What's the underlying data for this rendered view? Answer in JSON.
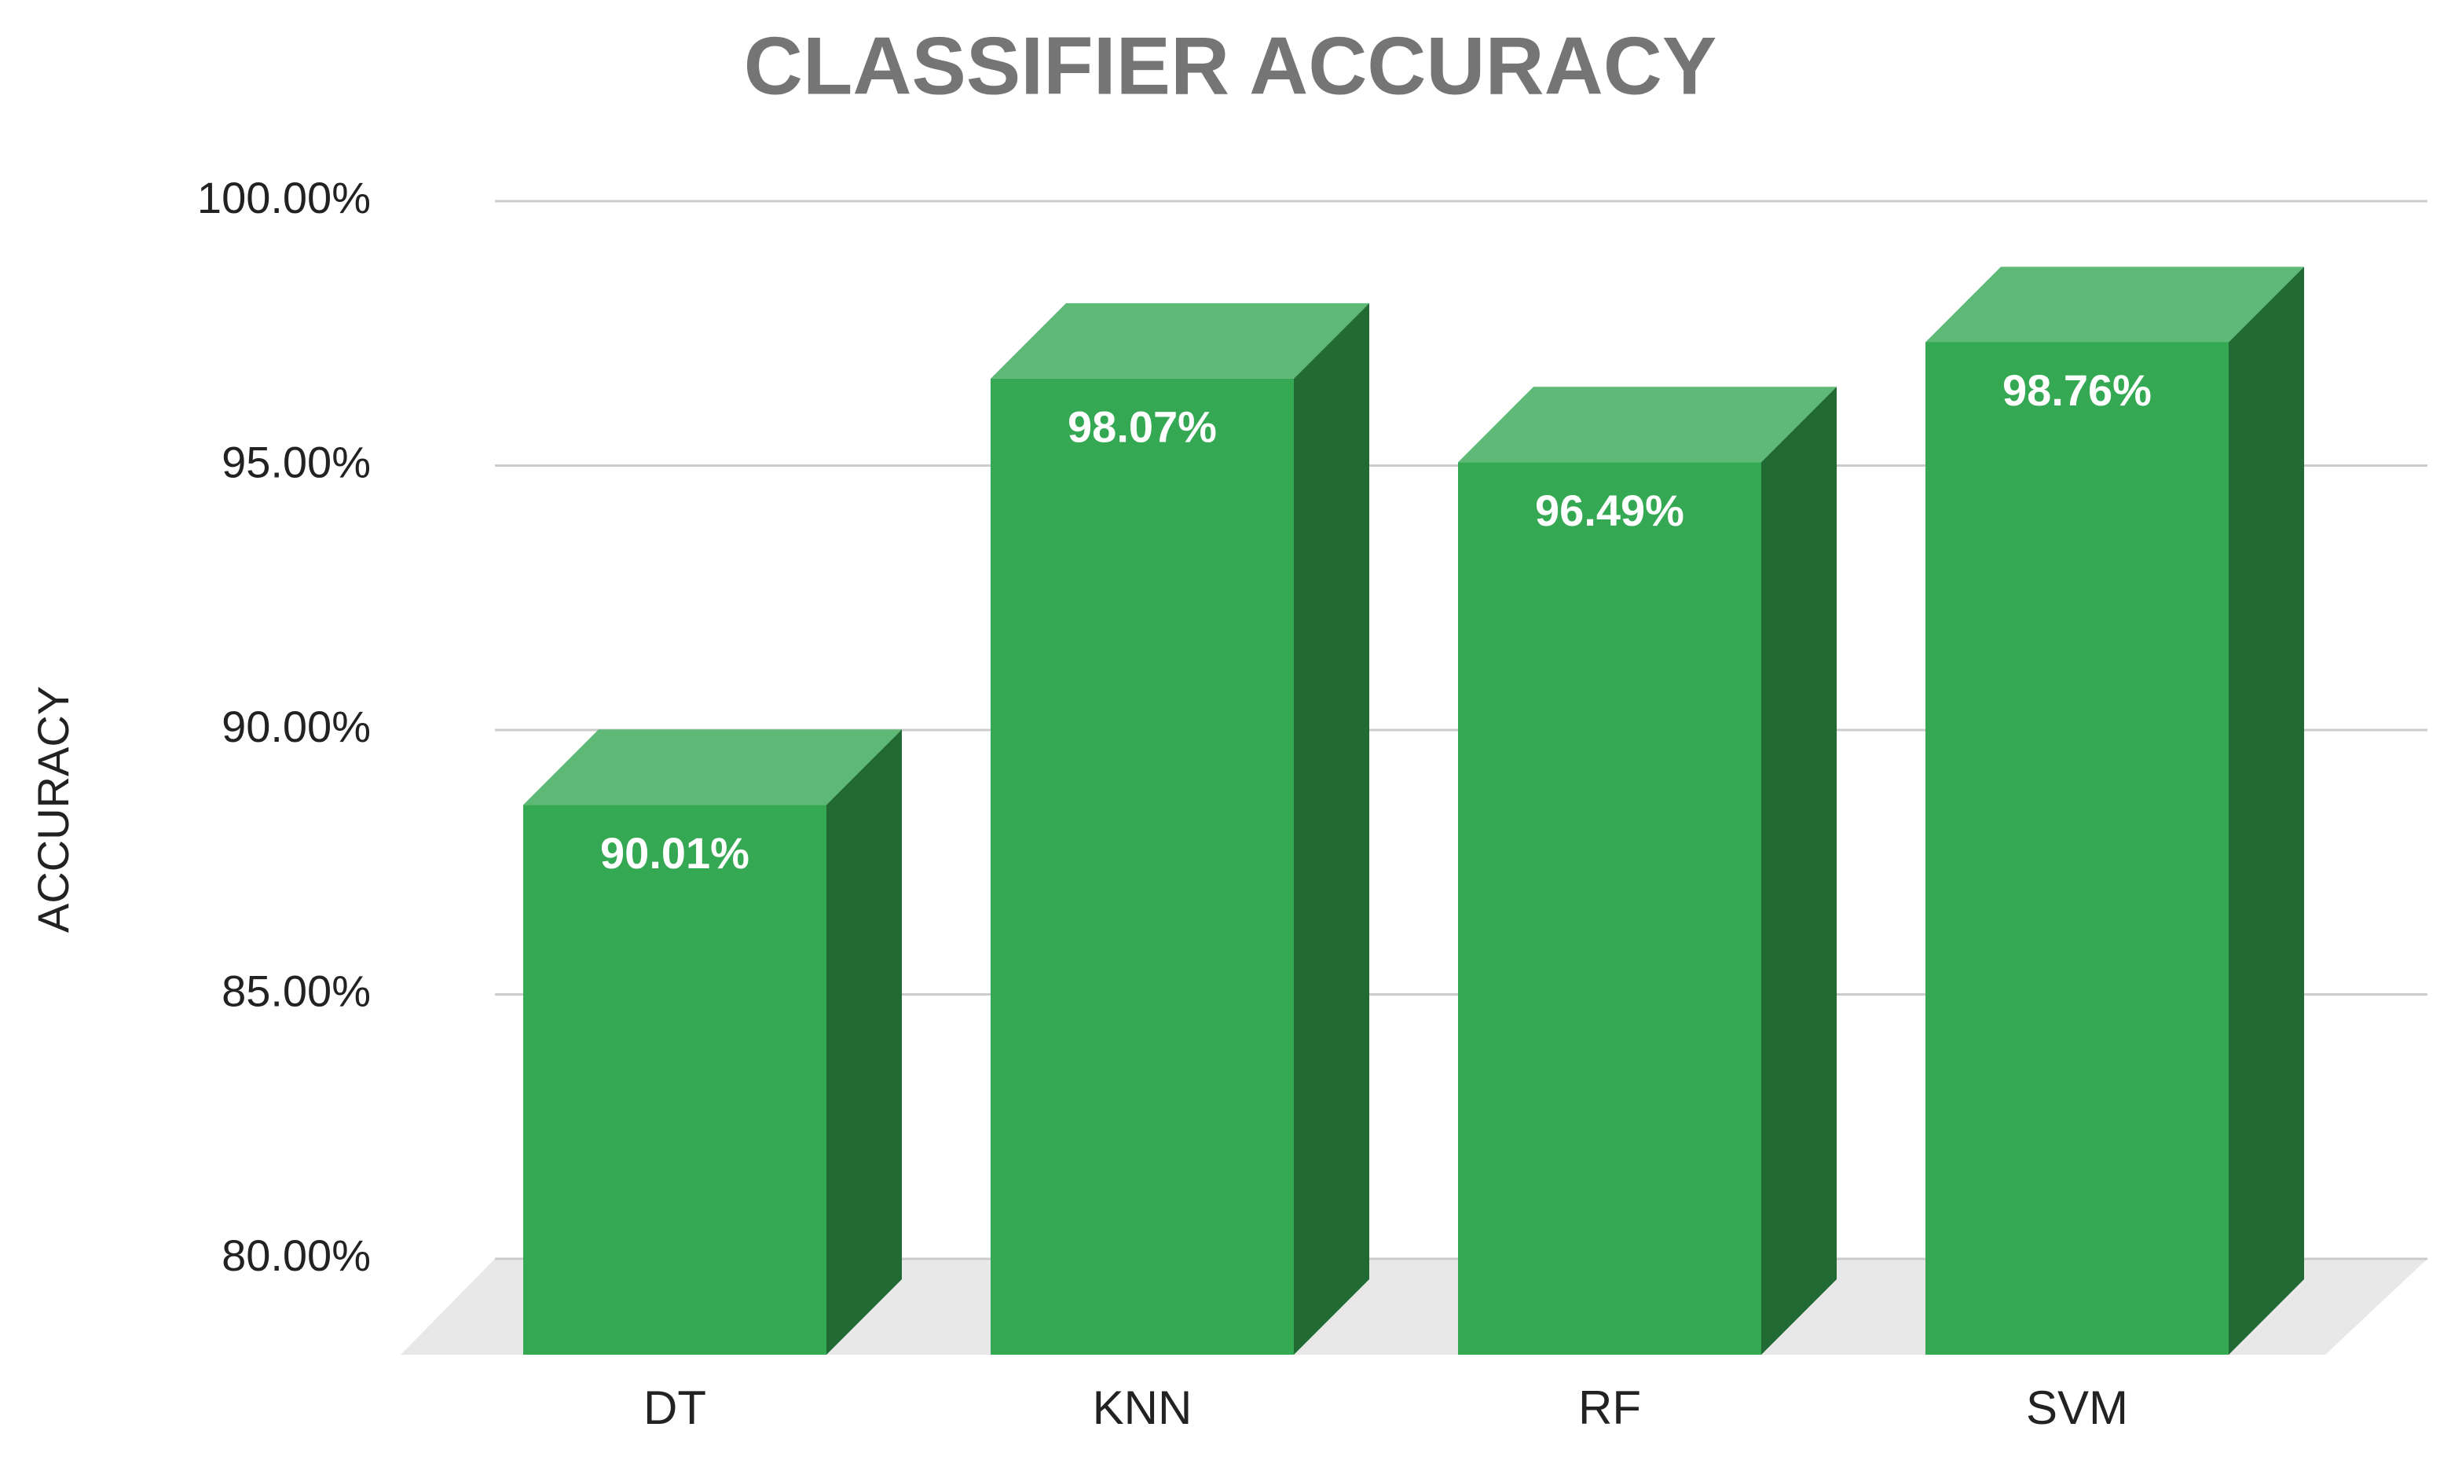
{
  "chart_data": {
    "type": "bar3d",
    "title": "CLASSIFIER ACCURACY",
    "y_label": "ACCURACY",
    "categories": [
      "DT",
      "KNN",
      "RF",
      "SVM"
    ],
    "values": [
      90.01,
      98.07,
      96.49,
      98.76
    ],
    "value_labels": [
      "90.01%",
      "98.07%",
      "96.49%",
      "98.76%"
    ],
    "color": "#34a853",
    "ylim": [
      80,
      100
    ],
    "yticks": [
      {
        "value": 80,
        "label": "80.00%"
      },
      {
        "value": 85,
        "label": "85.00%"
      },
      {
        "value": 90,
        "label": "90.00%"
      },
      {
        "value": 95,
        "label": "95.00%"
      },
      {
        "value": 100,
        "label": "100.00%"
      }
    ],
    "grid": true
  }
}
